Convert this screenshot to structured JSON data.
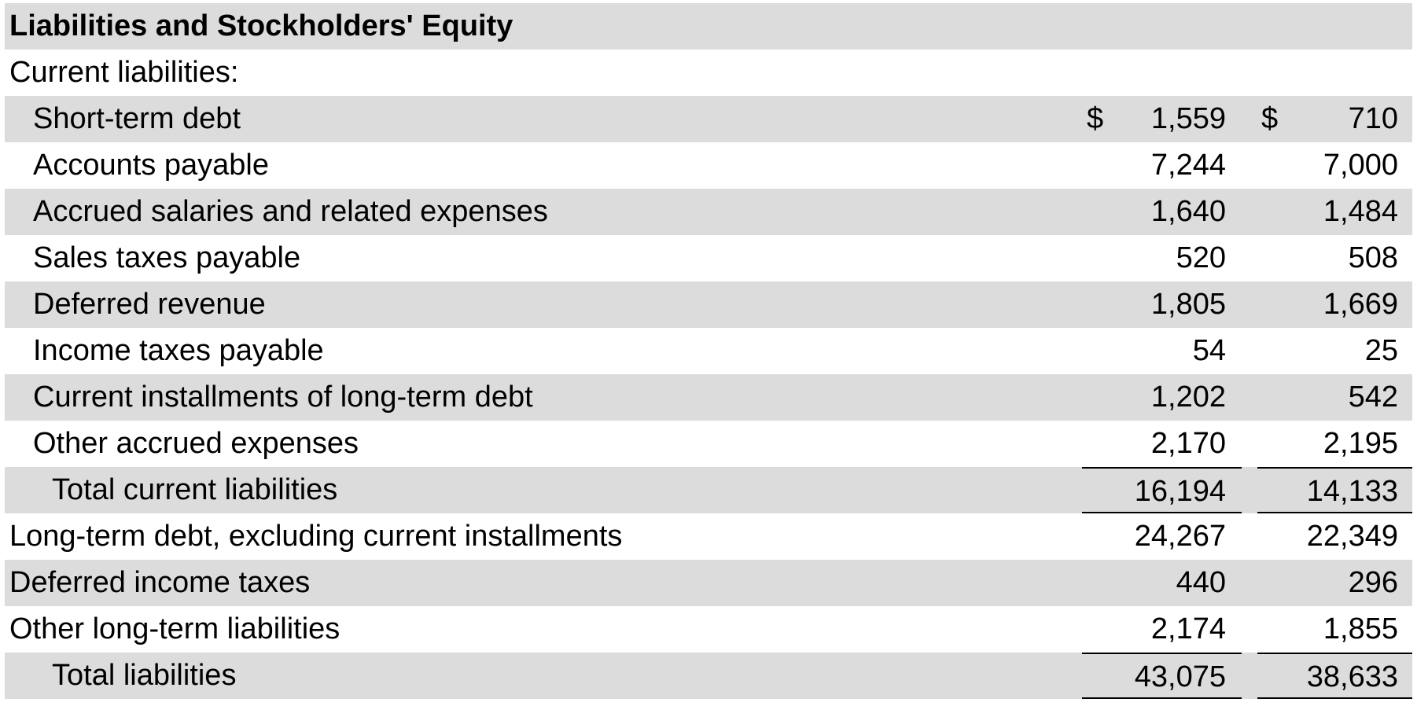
{
  "header": "Liabilities and Stockholders' Equity",
  "section_current": "Current liabilities:",
  "currency_symbol": "$",
  "rows": [
    {
      "label": "Short-term debt",
      "v1": "1,559",
      "v2": "710"
    },
    {
      "label": "Accounts payable",
      "v1": "7,244",
      "v2": "7,000"
    },
    {
      "label": "Accrued salaries and related expenses",
      "v1": "1,640",
      "v2": "1,484"
    },
    {
      "label": "Sales taxes payable",
      "v1": "520",
      "v2": "508"
    },
    {
      "label": "Deferred revenue",
      "v1": "1,805",
      "v2": "1,669"
    },
    {
      "label": "Income taxes payable",
      "v1": "54",
      "v2": "25"
    },
    {
      "label": "Current installments of long-term debt",
      "v1": "1,202",
      "v2": "542"
    },
    {
      "label": "Other accrued expenses",
      "v1": "2,170",
      "v2": "2,195"
    },
    {
      "label": "Total current liabilities",
      "v1": "16,194",
      "v2": "14,133"
    },
    {
      "label": "Long-term debt, excluding current installments",
      "v1": "24,267",
      "v2": "22,349"
    },
    {
      "label": "Deferred income taxes",
      "v1": "440",
      "v2": "296"
    },
    {
      "label": "Other long-term liabilities",
      "v1": "2,174",
      "v2": "1,855"
    },
    {
      "label": "Total liabilities",
      "v1": "43,075",
      "v2": "38,633"
    }
  ],
  "colors": {
    "shade": "#dcdcdc",
    "text": "#000000",
    "rule": "#000000"
  }
}
